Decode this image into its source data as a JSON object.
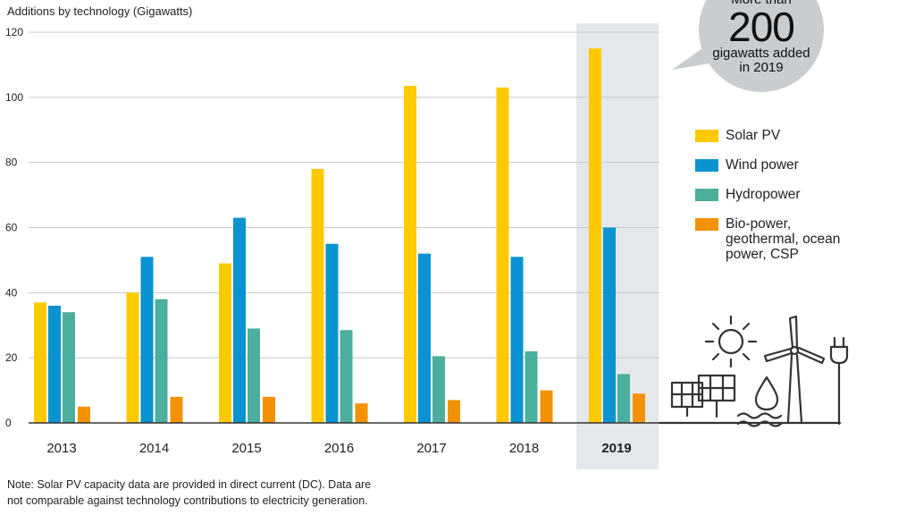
{
  "header": {
    "ylabel": "Additions by technology (Gigawatts)"
  },
  "callout": {
    "line1": "More than",
    "big": "200",
    "line2": "gigawatts added",
    "line3": "in 2019"
  },
  "legend": [
    {
      "label": "Solar PV",
      "color": "#FFC900"
    },
    {
      "label": "Wind power",
      "color": "#0A93D1"
    },
    {
      "label": "Hydropower",
      "color": "#4CAE9C"
    },
    {
      "label": "Bio-power, geothermal, ocean power, CSP",
      "color": "#F39200"
    }
  ],
  "note": {
    "line1": "Note: Solar PV capacity data are provided in direct current (DC). Data are",
    "line2": "not comparable against technology contributions to electricity generation."
  },
  "icons": [
    "sun-icon",
    "solar-panel-icon",
    "water-drop-icon",
    "wind-turbine-icon",
    "power-plug-icon"
  ],
  "chart_data": {
    "type": "bar",
    "categories": [
      "2013",
      "2014",
      "2015",
      "2016",
      "2017",
      "2018",
      "2019"
    ],
    "highlight_category": "2019",
    "series": [
      {
        "name": "Solar PV",
        "values": [
          37,
          40,
          49,
          78,
          103.5,
          103,
          115
        ]
      },
      {
        "name": "Wind power",
        "values": [
          36,
          51,
          63,
          55,
          52,
          51,
          60
        ]
      },
      {
        "name": "Hydropower",
        "values": [
          34,
          38,
          29,
          28.5,
          20.5,
          22,
          15
        ]
      },
      {
        "name": "Bio-power, geothermal, ocean power, CSP",
        "values": [
          5,
          8,
          8,
          6,
          7,
          10,
          9
        ]
      }
    ],
    "ylabel": "Additions by technology (Gigawatts)",
    "ylim": [
      0,
      120
    ],
    "yticks": [
      0,
      20,
      40,
      60,
      80,
      100,
      120
    ],
    "grid": true,
    "legend": "right"
  }
}
